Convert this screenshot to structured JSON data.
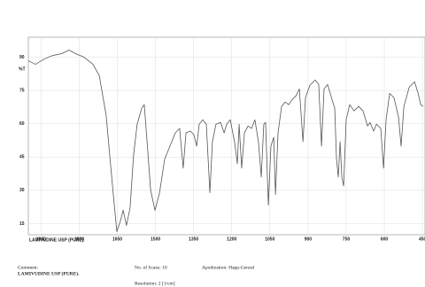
{
  "chart_data": {
    "type": "line",
    "y_label": "%T",
    "xlim": [
      2000,
      440
    ],
    "ylim": [
      10,
      99
    ],
    "xticks": [
      1950,
      1800,
      1650,
      1500,
      1350,
      1200,
      1050,
      900,
      750,
      600,
      450
    ],
    "yticks": [
      90,
      75,
      60,
      45,
      30,
      15
    ],
    "grid": true,
    "series": [
      {
        "color": "#555555",
        "x": [
          2000,
          1972,
          1937,
          1903,
          1868,
          1840,
          1815,
          1781,
          1746,
          1721,
          1694,
          1669,
          1652,
          1638,
          1627,
          1614,
          1600,
          1586,
          1572,
          1554,
          1544,
          1533,
          1519,
          1502,
          1484,
          1464,
          1443,
          1422,
          1405,
          1391,
          1380,
          1363,
          1349,
          1338,
          1328,
          1314,
          1300,
          1286,
          1276,
          1262,
          1244,
          1230,
          1220,
          1206,
          1189,
          1178,
          1171,
          1161,
          1150,
          1136,
          1122,
          1109,
          1095,
          1084,
          1074,
          1067,
          1056,
          1046,
          1035,
          1028,
          1018,
          1004,
          990,
          976,
          962,
          948,
          934,
          920,
          910,
          893,
          872,
          858,
          847,
          837,
          823,
          806,
          795,
          788,
          781,
          774,
          767,
          760,
          750,
          736,
          719,
          701,
          684,
          666,
          656,
          642,
          631,
          614,
          603,
          593,
          579,
          562,
          544,
          534,
          523,
          502,
          481,
          467,
          457,
          447
        ],
        "values": [
          88.4,
          86.8,
          89.2,
          90.8,
          91.6,
          93.2,
          91.6,
          90,
          86.8,
          81.7,
          63.8,
          32,
          11.4,
          16.2,
          21,
          14.2,
          22,
          46,
          59.8,
          67,
          68.6,
          51.9,
          30.1,
          21,
          28.9,
          44,
          49.9,
          55.9,
          57.9,
          40,
          55.9,
          56.7,
          55.1,
          49.9,
          59.8,
          61.8,
          59.8,
          28.9,
          51.9,
          59.8,
          60.6,
          55.9,
          59.8,
          61.8,
          51.9,
          42,
          59.8,
          40,
          55.9,
          59,
          57.9,
          61.8,
          51.9,
          36,
          59.8,
          60.6,
          23.3,
          49.9,
          53.9,
          28.1,
          55.9,
          67.8,
          69.8,
          68.6,
          71,
          72.5,
          75.7,
          51.9,
          71.7,
          77.3,
          79.7,
          77.7,
          49.9,
          75.7,
          77.7,
          71,
          67,
          44,
          36,
          51.9,
          36,
          32,
          61.8,
          68.6,
          65.8,
          67.8,
          65.8,
          59,
          60.6,
          56.7,
          59.8,
          57.9,
          40,
          61.8,
          73.7,
          71.7,
          63,
          49.9,
          67.8,
          76.5,
          78.9,
          73.7,
          68.6,
          67.8
        ]
      }
    ],
    "sample_label": "LAMIVUDINE USP (PURE).",
    "comment_label": "Comment:",
    "comment": "LAMIVUDINE USP (PURE).",
    "scans": "No. of Scans: 10",
    "apodization": "Apodization: Happ-Genzel",
    "resolution": "Resolution: 2 [1/cm]"
  }
}
